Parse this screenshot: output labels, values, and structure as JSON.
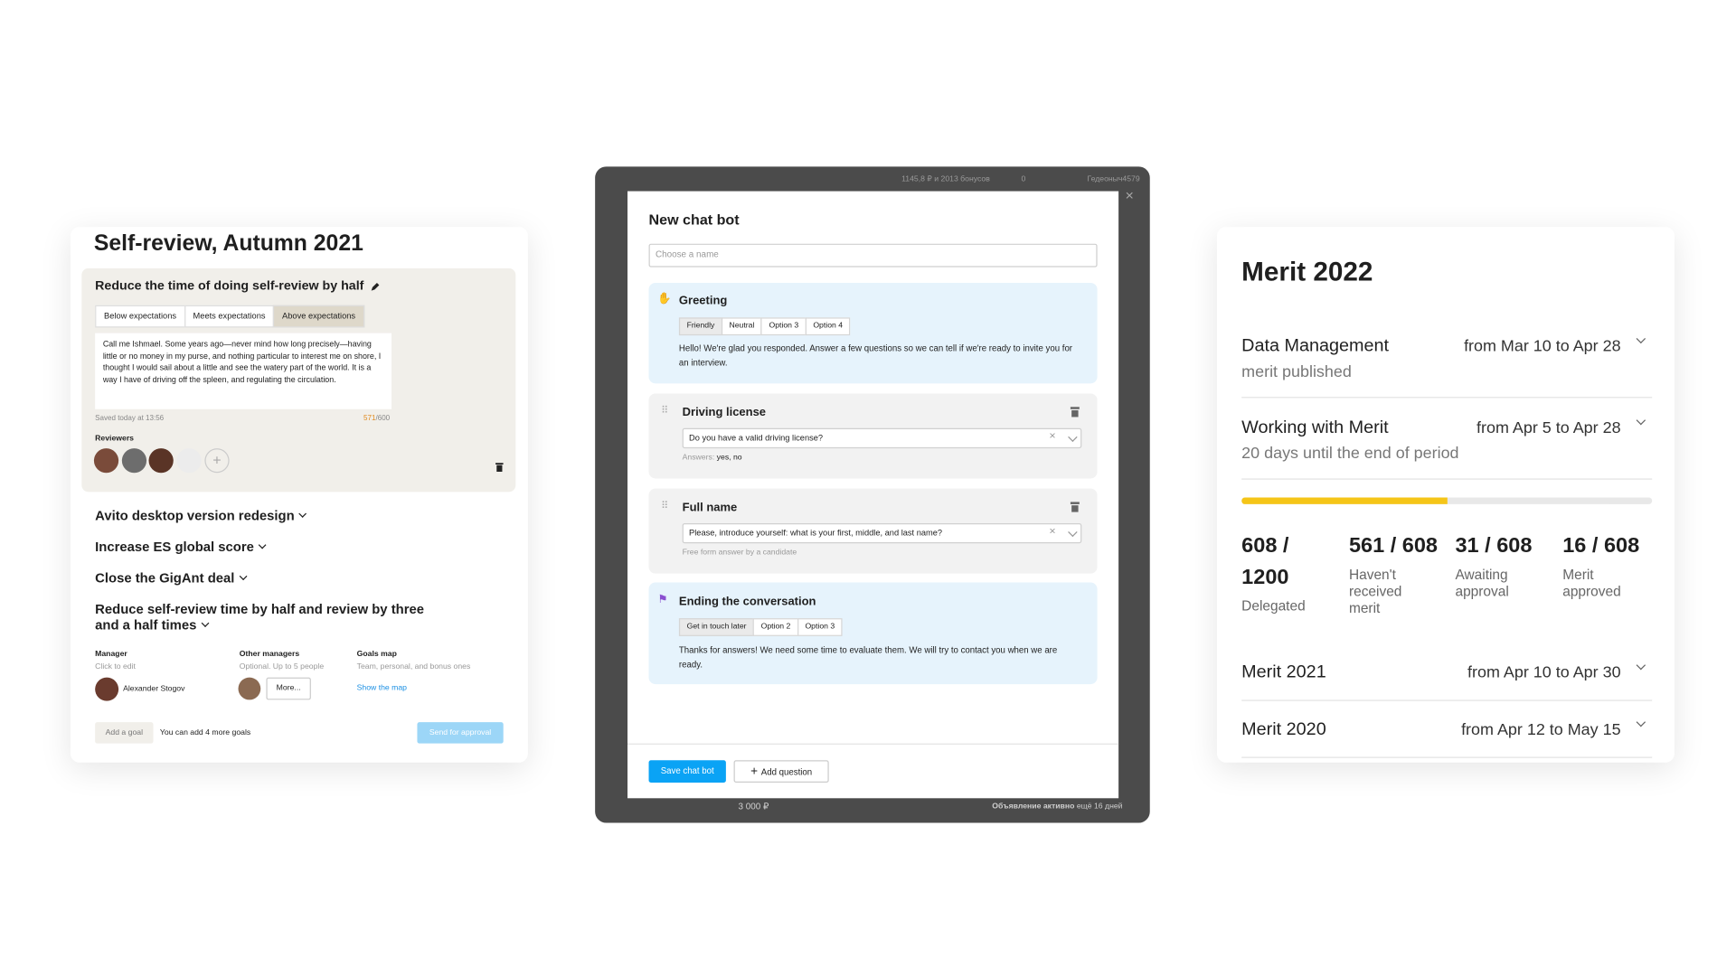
{
  "self_review": {
    "title": "Self-review, Autumn 2021",
    "goal": {
      "title": "Reduce the time of doing self-review by half",
      "ratings": [
        "Below expectations",
        "Meets expectations",
        "Above expectations"
      ],
      "text": "Call me Ishmael. Some years ago—never mind how long precisely—having little or no money in my purse, and nothing particular to interest me on shore, I thought I would sail about a little and see the watery part of the world. It is a way I have of driving off the spleen, and regulating the circulation.",
      "saved": "Saved today at 13:56",
      "count": "571",
      "limit": "/600",
      "reviewers_label": "Reviewers"
    },
    "other_goals": [
      "Avito desktop version redesign",
      "Increase ES global score",
      "Close the GigAnt deal",
      "Reduce self-review time by half and review by three and a half times"
    ],
    "manager": {
      "label": "Manager",
      "hint": "Click to edit",
      "name": "Alexander Stogov"
    },
    "other_managers": {
      "label": "Other managers",
      "hint": "Optional. Up to 5 people",
      "button": "More..."
    },
    "goals_map": {
      "label": "Goals map",
      "hint": "Team, personal, and bonus ones",
      "link": "Show the map"
    },
    "footer": {
      "add_goal": "Add a goal",
      "note": "You can add 4 more goals",
      "send": "Send for approval"
    }
  },
  "chat_bot": {
    "topbar": {
      "balance": "1145,8 ₽ и 2013 бонусов",
      "messages": "0",
      "user": "Гедеоныч4579"
    },
    "title": "New chat bot",
    "name_placeholder": "Choose a name",
    "greeting": {
      "title": "Greeting",
      "options": [
        "Friendly",
        "Neutral",
        "Option 3",
        "Option 4"
      ],
      "text": "Hello! We're glad you responded. Answer a few questions so we can tell if we're ready to invite you for an interview."
    },
    "questions": [
      {
        "title": "Driving license",
        "input": "Do you have a valid driving license?",
        "answers_label": "Answers:",
        "answers": "yes, no"
      },
      {
        "title": "Full name",
        "input": "Please, introduce yourself: what is your first, middle, and last name?",
        "hint": "Free form answer by a candidate"
      }
    ],
    "ending": {
      "title": "Ending the conversation",
      "options": [
        "Get in touch later",
        "Option 2",
        "Option 3"
      ],
      "text": "Thanks for answers! We need some time to evaluate them. We will try to contact you when we are ready."
    },
    "save": "Save chat bot",
    "add_question": "Add question",
    "background": {
      "price": "3 000 ₽",
      "status": "Объявление активно",
      "status_rest": "ещё 16 дней"
    }
  },
  "merit": {
    "title": "Merit 2022",
    "periods": [
      {
        "name": "Data Management",
        "dates": "from Mar 10 to Apr 28",
        "status": "merit published"
      },
      {
        "name": "Working with Merit",
        "dates": "from Apr 5 to Apr 28",
        "status": "20 days until the end of period"
      }
    ],
    "progress": 50,
    "stats": [
      {
        "value": "608 / 1200",
        "label": "Delegated"
      },
      {
        "value": "561 / 608",
        "label": "Haven't received merit"
      },
      {
        "value": "31 / 608",
        "label": "Awaiting approval"
      },
      {
        "value": "16 / 608",
        "label": "Merit approved"
      }
    ],
    "past": [
      {
        "name": "Merit 2021",
        "dates": "from Apr 10 to Apr 30"
      },
      {
        "name": "Merit 2020",
        "dates": "from Apr 12 to May 15"
      }
    ]
  }
}
